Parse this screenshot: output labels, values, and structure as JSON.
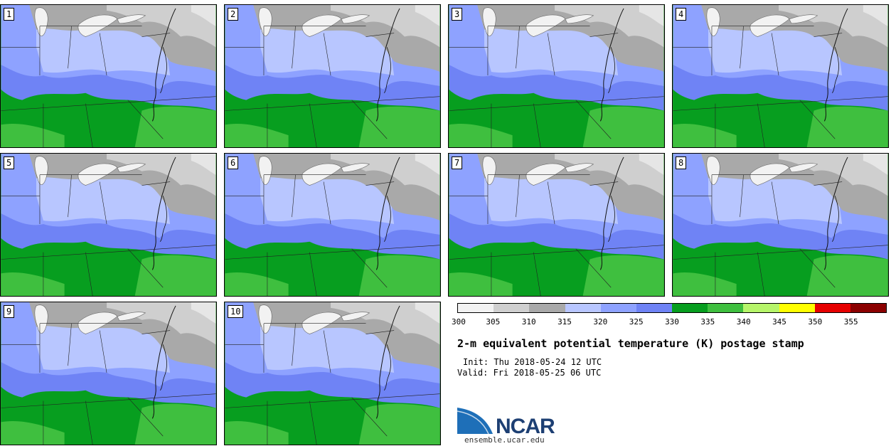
{
  "panels": [
    {
      "label": "1"
    },
    {
      "label": "2"
    },
    {
      "label": "3"
    },
    {
      "label": "4"
    },
    {
      "label": "5"
    },
    {
      "label": "6"
    },
    {
      "label": "7"
    },
    {
      "label": "8"
    },
    {
      "label": "9"
    },
    {
      "label": "10"
    }
  ],
  "colorbar": {
    "ticks": [
      "300",
      "305",
      "310",
      "315",
      "320",
      "325",
      "330",
      "335",
      "340",
      "345",
      "350",
      "355"
    ],
    "colors": [
      "#f2f2f2",
      "#cfcfcf",
      "#a9a9a9",
      "#b8c6ff",
      "#8ea2ff",
      "#6f83f5",
      "#079e1f",
      "#3fbf3f",
      "#b6f56a",
      "#ffff00",
      "#e60000",
      "#8b0000"
    ]
  },
  "legend": {
    "title": "2-m equivalent potential temperature (K) postage stamp",
    "init": "Init: Thu 2018-05-24 12 UTC",
    "valid": "Valid: Fri 2018-05-25 06 UTC"
  },
  "logo": {
    "name": "NCAR",
    "url": "ensemble.ucar.edu"
  }
}
